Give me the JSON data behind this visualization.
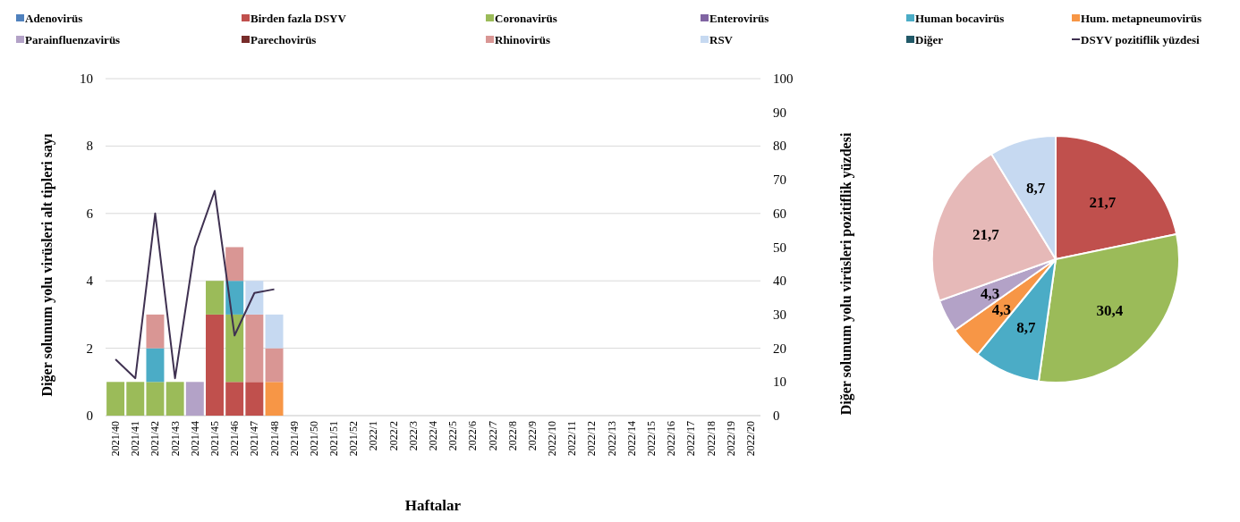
{
  "chart_data": [
    {
      "type": "bar",
      "stacked": true,
      "xlabel": "Haftalar",
      "ylabel": "Diğer solunum yolu virüsleri alt tipleri sayı",
      "y2label": "Diğer solunum yolu virüsleri pozitiflik yüzdesi",
      "categories": [
        "2021/40",
        "2021/41",
        "2021/42",
        "2021/43",
        "2021/44",
        "2021/45",
        "2021/46",
        "2021/47",
        "2021/48",
        "2021/49",
        "2021/50",
        "2021/51",
        "2021/52",
        "2022/1",
        "2022/2",
        "2022/3",
        "2022/4",
        "2022/5",
        "2022/6",
        "2022/7",
        "2022/8",
        "2022/9",
        "2022/10",
        "2022/11",
        "2022/12",
        "2022/13",
        "2022/14",
        "2022/15",
        "2022/16",
        "2022/17",
        "2022/18",
        "2022/19",
        "2022/20"
      ],
      "ylim": [
        0,
        10
      ],
      "yticks": [
        0,
        2,
        4,
        6,
        8,
        10
      ],
      "y2lim": [
        0,
        100
      ],
      "y2ticks": [
        0,
        10,
        20,
        30,
        40,
        50,
        60,
        70,
        80,
        90,
        100
      ],
      "grid": "y",
      "legend": "top",
      "series": [
        {
          "name": "Adenovirüs",
          "color": "#4f81bd",
          "values": [
            null,
            null,
            null,
            null,
            null,
            null,
            null,
            null,
            null,
            null,
            null,
            null,
            null,
            null,
            null,
            null,
            null,
            null,
            null,
            null,
            null,
            null,
            null,
            null,
            null,
            null,
            null,
            null,
            null,
            null,
            null,
            null,
            null
          ]
        },
        {
          "name": "Birden fazla DSYV",
          "color": "#c0504d",
          "values": [
            null,
            null,
            null,
            null,
            null,
            3,
            1,
            1,
            null,
            null,
            null,
            null,
            null,
            null,
            null,
            null,
            null,
            null,
            null,
            null,
            null,
            null,
            null,
            null,
            null,
            null,
            null,
            null,
            null,
            null,
            null,
            null,
            null
          ]
        },
        {
          "name": "Coronavirüs",
          "color": "#9bbb59",
          "values": [
            1,
            1,
            1,
            1,
            null,
            1,
            2,
            null,
            null,
            null,
            null,
            null,
            null,
            null,
            null,
            null,
            null,
            null,
            null,
            null,
            null,
            null,
            null,
            null,
            null,
            null,
            null,
            null,
            null,
            null,
            null,
            null,
            null
          ]
        },
        {
          "name": "Enterovirüs",
          "color": "#8064a2",
          "values": [
            null,
            null,
            null,
            null,
            null,
            null,
            null,
            null,
            null,
            null,
            null,
            null,
            null,
            null,
            null,
            null,
            null,
            null,
            null,
            null,
            null,
            null,
            null,
            null,
            null,
            null,
            null,
            null,
            null,
            null,
            null,
            null,
            null
          ]
        },
        {
          "name": "Human bocavirüs",
          "color": "#4bacc6",
          "values": [
            null,
            null,
            1,
            null,
            null,
            null,
            1,
            null,
            null,
            null,
            null,
            null,
            null,
            null,
            null,
            null,
            null,
            null,
            null,
            null,
            null,
            null,
            null,
            null,
            null,
            null,
            null,
            null,
            null,
            null,
            null,
            null,
            null
          ]
        },
        {
          "name": "Hum. metapneumovirüs",
          "color": "#f79646",
          "values": [
            null,
            null,
            null,
            null,
            null,
            null,
            null,
            null,
            1,
            null,
            null,
            null,
            null,
            null,
            null,
            null,
            null,
            null,
            null,
            null,
            null,
            null,
            null,
            null,
            null,
            null,
            null,
            null,
            null,
            null,
            null,
            null,
            null
          ]
        },
        {
          "name": "Parainfluenzavirüs",
          "color": "#b3a2c7",
          "values": [
            null,
            null,
            null,
            null,
            1,
            null,
            null,
            null,
            null,
            null,
            null,
            null,
            null,
            null,
            null,
            null,
            null,
            null,
            null,
            null,
            null,
            null,
            null,
            null,
            null,
            null,
            null,
            null,
            null,
            null,
            null,
            null,
            null
          ]
        },
        {
          "name": "Parechovirüs",
          "color": "#772c2a",
          "values": [
            null,
            null,
            null,
            null,
            null,
            null,
            null,
            null,
            null,
            null,
            null,
            null,
            null,
            null,
            null,
            null,
            null,
            null,
            null,
            null,
            null,
            null,
            null,
            null,
            null,
            null,
            null,
            null,
            null,
            null,
            null,
            null,
            null
          ]
        },
        {
          "name": "Rhinovirüs",
          "color": "#d99694",
          "values": [
            null,
            null,
            1,
            null,
            null,
            null,
            1,
            2,
            1,
            null,
            null,
            null,
            null,
            null,
            null,
            null,
            null,
            null,
            null,
            null,
            null,
            null,
            null,
            null,
            null,
            null,
            null,
            null,
            null,
            null,
            null,
            null,
            null
          ]
        },
        {
          "name": "RSV",
          "color": "#c6d9f1",
          "values": [
            null,
            null,
            null,
            null,
            null,
            null,
            null,
            1,
            1,
            null,
            null,
            null,
            null,
            null,
            null,
            null,
            null,
            null,
            null,
            null,
            null,
            null,
            null,
            null,
            null,
            null,
            null,
            null,
            null,
            null,
            null,
            null,
            null
          ]
        },
        {
          "name": "Diğer",
          "color": "#215968",
          "values": [
            null,
            null,
            null,
            null,
            null,
            null,
            null,
            null,
            null,
            null,
            null,
            null,
            null,
            null,
            null,
            null,
            null,
            null,
            null,
            null,
            null,
            null,
            null,
            null,
            null,
            null,
            null,
            null,
            null,
            null,
            null,
            null,
            null
          ]
        },
        {
          "name": "DSYV pozitiflik yüzdesi",
          "type": "line",
          "axis": "y2",
          "color": "#3f3151",
          "values": [
            16.7,
            11.1,
            60,
            11.1,
            50,
            66.7,
            23.8,
            36.4,
            37.5,
            null,
            null,
            null,
            null,
            null,
            null,
            null,
            null,
            null,
            null,
            null,
            null,
            null,
            null,
            null,
            null,
            null,
            null,
            null,
            null,
            null,
            null,
            null,
            null
          ]
        }
      ]
    },
    {
      "type": "pie",
      "categories": [
        null,
        null,
        null,
        null,
        null,
        null,
        null
      ],
      "values": [
        21.7,
        30.4,
        8.7,
        4.3,
        4.3,
        21.7,
        8.7
      ],
      "colors": [
        "#c0504d",
        "#9bbb59",
        "#4bacc6",
        "#f79646",
        "#b3a2c7",
        "#e6b9b8",
        "#c6d9f1"
      ],
      "data_labels": true,
      "value_labels": [
        "21,7",
        "30,4",
        "8,7",
        "4,3",
        "4,3",
        "21,7",
        "8,7"
      ]
    }
  ]
}
